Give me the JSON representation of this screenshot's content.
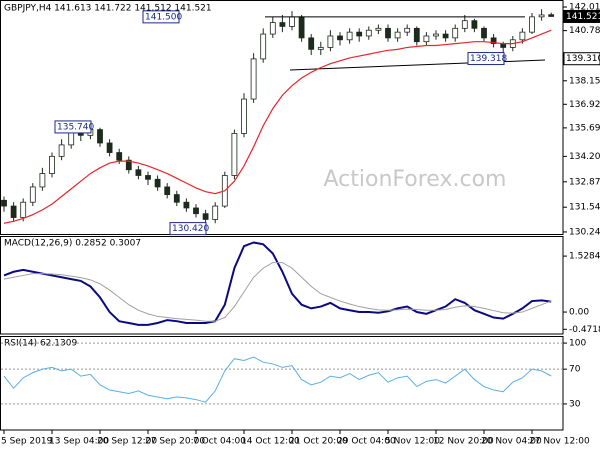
{
  "chart_data": [
    {
      "type": "candlestick",
      "title": "GBPJPY,H4  141.613 141.722 141.512 141.521",
      "watermark": "ActionForex.com",
      "categories": [
        "5 Sep 2019",
        null,
        null,
        null,
        null,
        "13 Sep 04:00",
        null,
        null,
        null,
        null,
        "20 Sep 12:00",
        null,
        null,
        null,
        null,
        "27 Sep 20:00",
        null,
        null,
        null,
        null,
        "7 Oct 04:00",
        null,
        null,
        null,
        null,
        "14 Oct 12:00",
        null,
        null,
        null,
        null,
        "21 Oct 20:00",
        null,
        null,
        null,
        null,
        "29 Oct 04:00",
        null,
        null,
        null,
        null,
        "5 Nov 12:00",
        null,
        null,
        null,
        null,
        "12 Nov 20:00",
        null,
        null,
        null,
        null,
        "20 Nov 04:00",
        null,
        null,
        null,
        null,
        "27 Nov 12:00",
        null,
        null
      ],
      "open": [
        131.9,
        131.6,
        131.0,
        131.8,
        132.6,
        133.3,
        134.2,
        134.8,
        135.5,
        135.3,
        135.6,
        134.9,
        134.4,
        134.0,
        133.5,
        133.2,
        133.0,
        132.6,
        132.2,
        131.8,
        131.5,
        131.2,
        130.9,
        131.6,
        133.2,
        135.4,
        137.2,
        139.3,
        140.6,
        141.2,
        141.0,
        141.5,
        140.4,
        139.8,
        139.9,
        140.5,
        140.3,
        140.7,
        140.5,
        140.8,
        140.9,
        140.4,
        140.7,
        140.9,
        140.2,
        140.5,
        140.6,
        140.4,
        140.9,
        141.3,
        140.9,
        140.4,
        140.1,
        139.9,
        140.3,
        140.7,
        141.5,
        141.613
      ],
      "high": [
        132.1,
        131.8,
        132.0,
        132.8,
        133.6,
        134.4,
        135.1,
        135.7,
        135.6,
        135.74,
        135.7,
        135.1,
        134.6,
        134.2,
        133.7,
        133.4,
        133.2,
        132.8,
        132.4,
        132.0,
        131.7,
        131.4,
        131.8,
        133.4,
        135.6,
        137.5,
        139.6,
        140.9,
        141.5,
        141.6,
        141.8,
        141.6,
        140.6,
        140.2,
        140.8,
        140.7,
        140.9,
        140.9,
        141.0,
        141.1,
        141.1,
        140.9,
        141.1,
        141.0,
        140.7,
        140.8,
        140.8,
        141.1,
        141.6,
        141.4,
        141.0,
        140.6,
        140.2,
        140.5,
        140.9,
        141.7,
        141.9,
        141.722
      ],
      "low": [
        131.3,
        130.8,
        130.8,
        131.6,
        132.4,
        133.1,
        134.0,
        134.6,
        135.0,
        135.1,
        134.7,
        134.2,
        133.8,
        133.3,
        133.0,
        132.7,
        132.4,
        132.0,
        131.6,
        131.3,
        131.0,
        130.42,
        130.7,
        131.5,
        133.0,
        135.2,
        137.0,
        139.1,
        140.4,
        140.7,
        140.8,
        140.2,
        139.5,
        139.5,
        139.7,
        140.0,
        140.1,
        140.2,
        140.3,
        140.6,
        140.2,
        140.2,
        140.5,
        140.0,
        140.0,
        140.3,
        140.2,
        140.2,
        140.7,
        140.7,
        140.2,
        139.9,
        139.318,
        139.7,
        140.1,
        140.6,
        141.3,
        141.512
      ],
      "close": [
        131.6,
        131.0,
        131.8,
        132.6,
        133.3,
        134.2,
        134.8,
        135.5,
        135.3,
        135.6,
        134.9,
        134.4,
        134.0,
        133.5,
        133.2,
        133.0,
        132.6,
        132.2,
        131.8,
        131.5,
        131.2,
        130.9,
        131.6,
        133.2,
        135.4,
        137.2,
        139.3,
        140.6,
        141.2,
        141.0,
        141.5,
        140.4,
        139.8,
        139.9,
        140.5,
        140.3,
        140.7,
        140.5,
        140.8,
        140.9,
        140.4,
        140.7,
        140.9,
        140.2,
        140.5,
        140.6,
        140.4,
        140.9,
        141.3,
        140.9,
        140.4,
        140.1,
        139.9,
        140.3,
        140.7,
        141.5,
        141.6,
        141.521
      ],
      "up_color": "#ffffff",
      "down_color": "#1c2b1c",
      "outline_color": "#1c2b1c",
      "series": [
        {
          "color": "#e8262b",
          "values": [
            130.7,
            130.8,
            130.95,
            131.15,
            131.4,
            131.7,
            132.1,
            132.5,
            132.9,
            133.3,
            133.6,
            133.85,
            133.95,
            133.95,
            133.85,
            133.7,
            133.5,
            133.3,
            133.05,
            132.8,
            132.55,
            132.35,
            132.25,
            132.4,
            132.9,
            133.7,
            134.7,
            135.8,
            136.7,
            137.4,
            137.9,
            138.3,
            138.6,
            138.85,
            139.05,
            139.2,
            139.35,
            139.45,
            139.55,
            139.65,
            139.75,
            139.8,
            139.9,
            139.95,
            140.0,
            140.0,
            140.05,
            140.1,
            140.15,
            140.2,
            140.2,
            140.15,
            140.1,
            140.1,
            140.2,
            140.4,
            140.6,
            140.8
          ]
        }
      ],
      "ylim": [
        130.19,
        142.33
      ],
      "yticks": [
        142.015,
        {
          "value": 140.78,
          "label": "140.780"
        },
        138.155,
        136.925,
        {
          "value": 135.69,
          "label": "135.690"
        },
        {
          "value": 134.2,
          "label": "134.200"
        },
        {
          "value": 132.87,
          "label": "132.870"
        },
        {
          "value": 131.54,
          "label": "131.540"
        },
        130.245
      ],
      "price_labels": [
        141.521,
        {
          "value": 139.31,
          "label": "139.310"
        }
      ],
      "annotations": [
        {
          "value": 141.5,
          "label": "141.500"
        },
        {
          "value": 135.74,
          "label": "135.740"
        },
        {
          "value": 130.42,
          "label": "130.420"
        },
        {
          "value": 139.318,
          "label": "139.318"
        }
      ],
      "annotation_color": "#1a2a8c"
    },
    {
      "type": "line",
      "title": "MACD(12,26,9) 0.2852 0.3007",
      "series": [
        {
          "color": "#0a0a80",
          "values": [
            1.0,
            1.1,
            1.15,
            1.1,
            1.05,
            1.0,
            0.95,
            0.9,
            0.85,
            0.7,
            0.4,
            0.0,
            -0.25,
            -0.3,
            -0.35,
            -0.35,
            -0.3,
            -0.22,
            -0.25,
            -0.3,
            -0.3,
            -0.3,
            -0.25,
            0.2,
            1.2,
            1.8,
            1.9,
            1.85,
            1.6,
            1.1,
            0.5,
            0.2,
            0.1,
            0.15,
            0.25,
            0.1,
            0.05,
            0.0,
            0.0,
            -0.02,
            0.02,
            0.1,
            0.15,
            0.0,
            -0.05,
            0.05,
            0.15,
            0.35,
            0.25,
            0.05,
            -0.05,
            -0.15,
            -0.18,
            -0.05,
            0.1,
            0.3,
            0.32,
            0.2852
          ]
        },
        {
          "color": "#a0a0a0",
          "values": [
            0.9,
            0.95,
            1.0,
            1.05,
            1.05,
            1.04,
            1.02,
            0.98,
            0.94,
            0.88,
            0.77,
            0.6,
            0.4,
            0.2,
            0.05,
            -0.05,
            -0.12,
            -0.15,
            -0.18,
            -0.2,
            -0.22,
            -0.25,
            -0.25,
            -0.15,
            0.15,
            0.55,
            0.95,
            1.2,
            1.35,
            1.35,
            1.2,
            0.95,
            0.7,
            0.5,
            0.4,
            0.3,
            0.22,
            0.15,
            0.1,
            0.06,
            0.05,
            0.06,
            0.08,
            0.07,
            0.05,
            0.05,
            0.07,
            0.13,
            0.17,
            0.15,
            0.1,
            0.04,
            -0.02,
            -0.03,
            0.0,
            0.1,
            0.2,
            0.3007
          ]
        }
      ],
      "ylim": [
        -0.6,
        2.05
      ],
      "yticks": [
        1.5284,
        {
          "value": 0,
          "label": "0.00"
        },
        -0.4718
      ]
    },
    {
      "type": "line",
      "title": "RSI(14) 62.1309",
      "series": [
        {
          "color": "#5aaee6",
          "values": [
            62,
            48,
            60,
            66,
            70,
            72,
            68,
            70,
            62,
            64,
            52,
            46,
            44,
            42,
            45,
            40,
            38,
            36,
            38,
            37,
            35,
            32,
            45,
            68,
            82,
            80,
            84,
            78,
            76,
            72,
            74,
            58,
            52,
            55,
            62,
            60,
            65,
            58,
            63,
            66,
            55,
            60,
            62,
            50,
            56,
            58,
            54,
            62,
            70,
            58,
            50,
            46,
            44,
            55,
            60,
            70,
            68,
            62.1309
          ]
        }
      ],
      "ylim": [
        0,
        107
      ],
      "yticks": [
        100,
        70,
        30
      ],
      "grid": true
    }
  ]
}
